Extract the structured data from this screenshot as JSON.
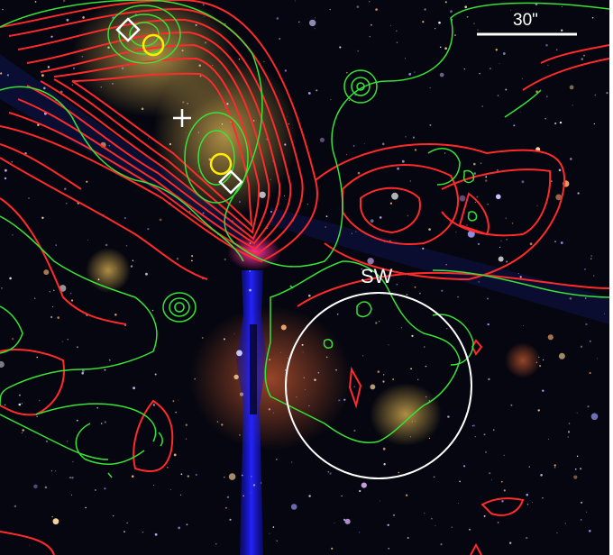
{
  "scale_bar": {
    "label": "30\""
  },
  "region_label": "SW",
  "colors": {
    "red_contours": "#ff2a2a",
    "green_contours": "#38e238",
    "markers_diamond": "#ffffff",
    "markers_circle": "#ffee00",
    "circle_region": "#ffffff",
    "stellar_streak": "#1a1aff",
    "core_glow": "#ff2aa0"
  }
}
